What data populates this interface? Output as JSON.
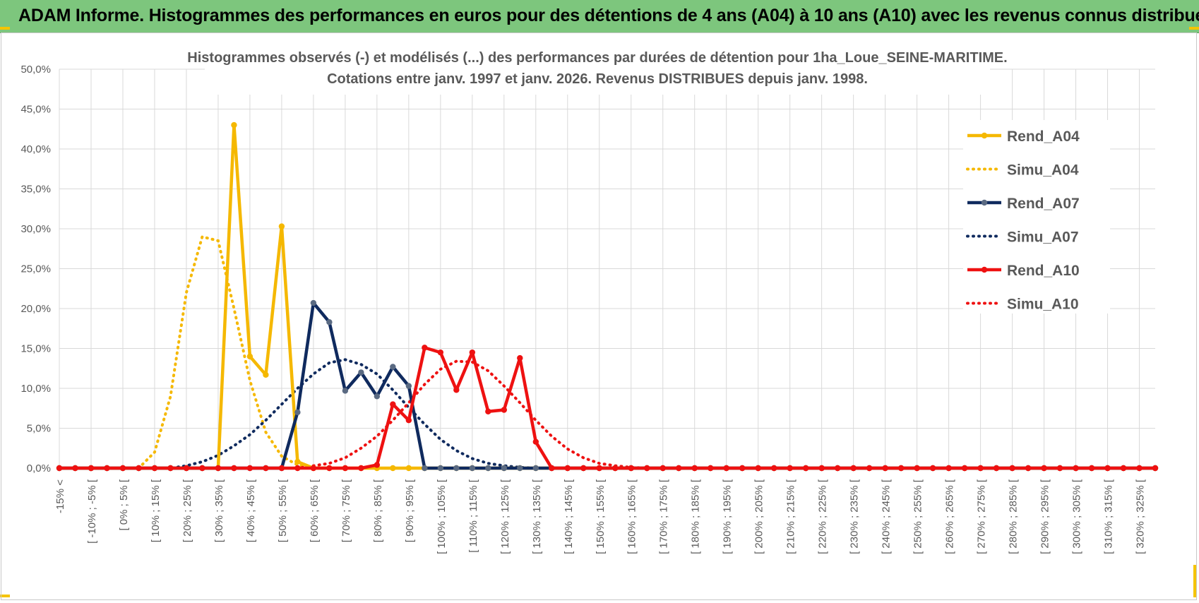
{
  "banner": {
    "title": "ADAM Informe. Histogrammes des performances en euros pour des détentions de 4 ans (A04) à 10 ans (A10) avec les revenus connus distribués"
  },
  "colors": {
    "banner_bg": "#7dc67d",
    "accent_corners": "#f5c400",
    "A04": "#f5b800",
    "A07": "#0f2a5e",
    "A10": "#ee1111"
  },
  "chart_data": {
    "type": "line",
    "title_lines": [
      "Histogrammes observés (-) et modélisés (...) des performances par durées de détention pour 1ha_Loue_SEINE-MARITIME.",
      "Cotations entre janv. 1997 et janv. 2026. Revenus DISTRIBUES depuis janv. 1998."
    ],
    "ylim": [
      0,
      50
    ],
    "y_ticks": [
      "0,0%",
      "5,0%",
      "10,0%",
      "15,0%",
      "20,0%",
      "25,0%",
      "30,0%",
      "35,0%",
      "40,0%",
      "45,0%",
      "50,0%"
    ],
    "x_labels": [
      "-15% <",
      "[ -10% ; -5% [",
      "[ 0% ; 5% [",
      "[ 10% ; 15% [",
      "[ 20% ; 25% [",
      "[ 30% ; 35% [",
      "[ 40% ; 45% [",
      "[ 50% ; 55% [",
      "[ 60% ; 65% [",
      "[ 70% ; 75% [",
      "[ 80% ; 85% [",
      "[ 90% ; 95% [",
      "[ 100% ; 105% [",
      "[ 110% ; 115% [",
      "[ 120% ; 125% [",
      "[ 130% ; 135% [",
      "[ 140% ; 145% [",
      "[ 150% ; 155% [",
      "[ 160% ; 165% [",
      "[ 170% ; 175% [",
      "[ 180% ; 185% [",
      "[ 190% ; 195% [",
      "[ 200% ; 205% [",
      "[ 210% ; 215% [",
      "[ 220% ; 225% [",
      "[ 230% ; 235% [",
      "[ 240% ; 245% [",
      "[ 250% ; 255% [",
      "[ 260% ; 265% [",
      "[ 270% ; 275% [",
      "[ 280% ; 285% [",
      "[ 290% ; 295% [",
      "[ 300% ; 305% [",
      "[ 310% ; 315% [",
      "[ 320% ; 325% ["
    ],
    "grid": true,
    "legend_position": "top-right",
    "series": [
      {
        "name": "Rend_A04",
        "style": "solid",
        "color": "#f5b800",
        "values": [
          0,
          0,
          0,
          0,
          0,
          0,
          0,
          0,
          0,
          0,
          0,
          43,
          14,
          11.7,
          30.3,
          0.8,
          0,
          0,
          0,
          0,
          0,
          0,
          0
        ]
      },
      {
        "name": "Simu_A04",
        "style": "dotted",
        "color": "#f5b800",
        "values": [
          0,
          0,
          0,
          0,
          0,
          0,
          2,
          9,
          22,
          29,
          28.5,
          20,
          11,
          4.5,
          1.5,
          0.4,
          0.1,
          0,
          0
        ]
      },
      {
        "name": "Rend_A07",
        "style": "solid",
        "color": "#0f2a5e",
        "values": [
          0,
          0,
          0,
          0,
          0,
          0,
          0,
          0,
          0,
          0,
          0,
          0,
          0,
          0,
          0,
          7,
          20.7,
          18.3,
          9.7,
          12,
          9,
          12.7,
          10.3,
          0,
          0,
          0,
          0,
          0,
          0,
          0,
          0,
          0,
          0,
          0
        ]
      },
      {
        "name": "Simu_A07",
        "style": "dotted",
        "color": "#0f2a5e",
        "values": [
          0,
          0,
          0,
          0,
          0,
          0,
          0,
          0,
          0.3,
          0.8,
          1.6,
          2.8,
          4.2,
          6,
          8,
          10,
          11.8,
          13.2,
          13.6,
          13,
          11.8,
          9.8,
          7.6,
          5.5,
          3.6,
          2.2,
          1.2,
          0.6,
          0.3,
          0.1,
          0,
          0,
          0,
          0
        ]
      },
      {
        "name": "Rend_A10",
        "style": "solid",
        "color": "#ee1111",
        "values": [
          0,
          0,
          0,
          0,
          0,
          0,
          0,
          0,
          0,
          0,
          0,
          0,
          0,
          0,
          0,
          0,
          0,
          0,
          0,
          0,
          0.4,
          8,
          6,
          15.1,
          14.5,
          9.8,
          14.5,
          7.1,
          7.3,
          13.8,
          3.3,
          0,
          0,
          0,
          0,
          0,
          0,
          0,
          0,
          0,
          0,
          0,
          0,
          0,
          0,
          0,
          0,
          0,
          0,
          0,
          0,
          0,
          0,
          0,
          0,
          0,
          0,
          0,
          0,
          0,
          0,
          0,
          0,
          0,
          0,
          0,
          0,
          0,
          0,
          0
        ]
      },
      {
        "name": "Simu_A10",
        "style": "dotted",
        "color": "#ee1111",
        "values": [
          0,
          0,
          0,
          0,
          0,
          0,
          0,
          0,
          0,
          0,
          0,
          0,
          0,
          0,
          0,
          0,
          0.3,
          0.6,
          1.3,
          2.5,
          4,
          6,
          8.2,
          10.5,
          12.4,
          13.4,
          13.3,
          12.2,
          10.3,
          8.2,
          6,
          4,
          2.4,
          1.3,
          0.6,
          0.3,
          0.1,
          0,
          0
        ]
      }
    ]
  }
}
